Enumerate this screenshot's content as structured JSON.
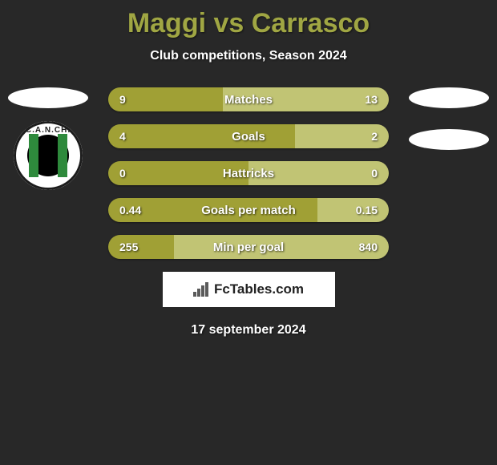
{
  "title": "Maggi vs Carrasco",
  "subtitle": "Club competitions, Season 2024",
  "date": "17 september 2024",
  "brand": "FcTables.com",
  "colors": {
    "left_fill": "#a0a035",
    "right_fill": "#c1c474",
    "background": "#282828",
    "title_color": "#a0a643"
  },
  "club_badge": {
    "arc_text": "C.A.N.CH."
  },
  "stats": [
    {
      "label": "Matches",
      "left_value": "9",
      "right_value": "13",
      "left_pct": 40.9,
      "right_pct": 59.1
    },
    {
      "label": "Goals",
      "left_value": "4",
      "right_value": "2",
      "left_pct": 66.7,
      "right_pct": 33.3
    },
    {
      "label": "Hattricks",
      "left_value": "0",
      "right_value": "0",
      "left_pct": 50,
      "right_pct": 50
    },
    {
      "label": "Goals per match",
      "left_value": "0.44",
      "right_value": "0.15",
      "left_pct": 74.6,
      "right_pct": 25.4
    },
    {
      "label": "Min per goal",
      "left_value": "255",
      "right_value": "840",
      "left_pct": 23.3,
      "right_pct": 76.7
    }
  ]
}
